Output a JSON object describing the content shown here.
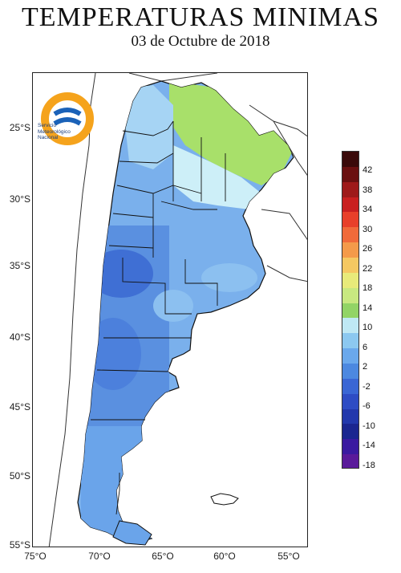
{
  "title": "TEMPERATURAS MINIMAS",
  "subtitle": "03 de Octubre de 2018",
  "logo": {
    "name_line1": "Servicio",
    "name_line2": "Meteorológico",
    "name_line3": "Nacional"
  },
  "lat_labels": [
    "25°S",
    "30°S",
    "35°S",
    "40°S",
    "45°S",
    "50°S",
    "55°S"
  ],
  "lon_labels": [
    "75°O",
    "70°O",
    "65°O",
    "60°O",
    "55°O"
  ],
  "legend": {
    "labels": [
      "42",
      "38",
      "34",
      "30",
      "26",
      "22",
      "18",
      "14",
      "10",
      "6",
      "2",
      "-2",
      "-6",
      "-10",
      "-14",
      "-18"
    ],
    "colors": [
      "#3a0a0a",
      "#6a1010",
      "#9e1a1a",
      "#c92020",
      "#e8402a",
      "#f06a3a",
      "#f49a4a",
      "#f5c862",
      "#e8ea7a",
      "#c8e880",
      "#92d466",
      "#bfe8f4",
      "#8cc8f0",
      "#6aa8ec",
      "#4c88e0",
      "#3a66d4",
      "#2e4cc4",
      "#2238ac",
      "#1a2690",
      "#3a1aa0",
      "#5a1a9a"
    ]
  },
  "colors": {
    "green": "#a8e06a",
    "lightgreen": "#c8ec88",
    "cyan": "#cdeff8",
    "lightblue": "#a6d4f4",
    "blue": "#7ab0ec",
    "midblue": "#5a90e0",
    "deepblue": "#3f6fd4",
    "outline": "#111111"
  }
}
